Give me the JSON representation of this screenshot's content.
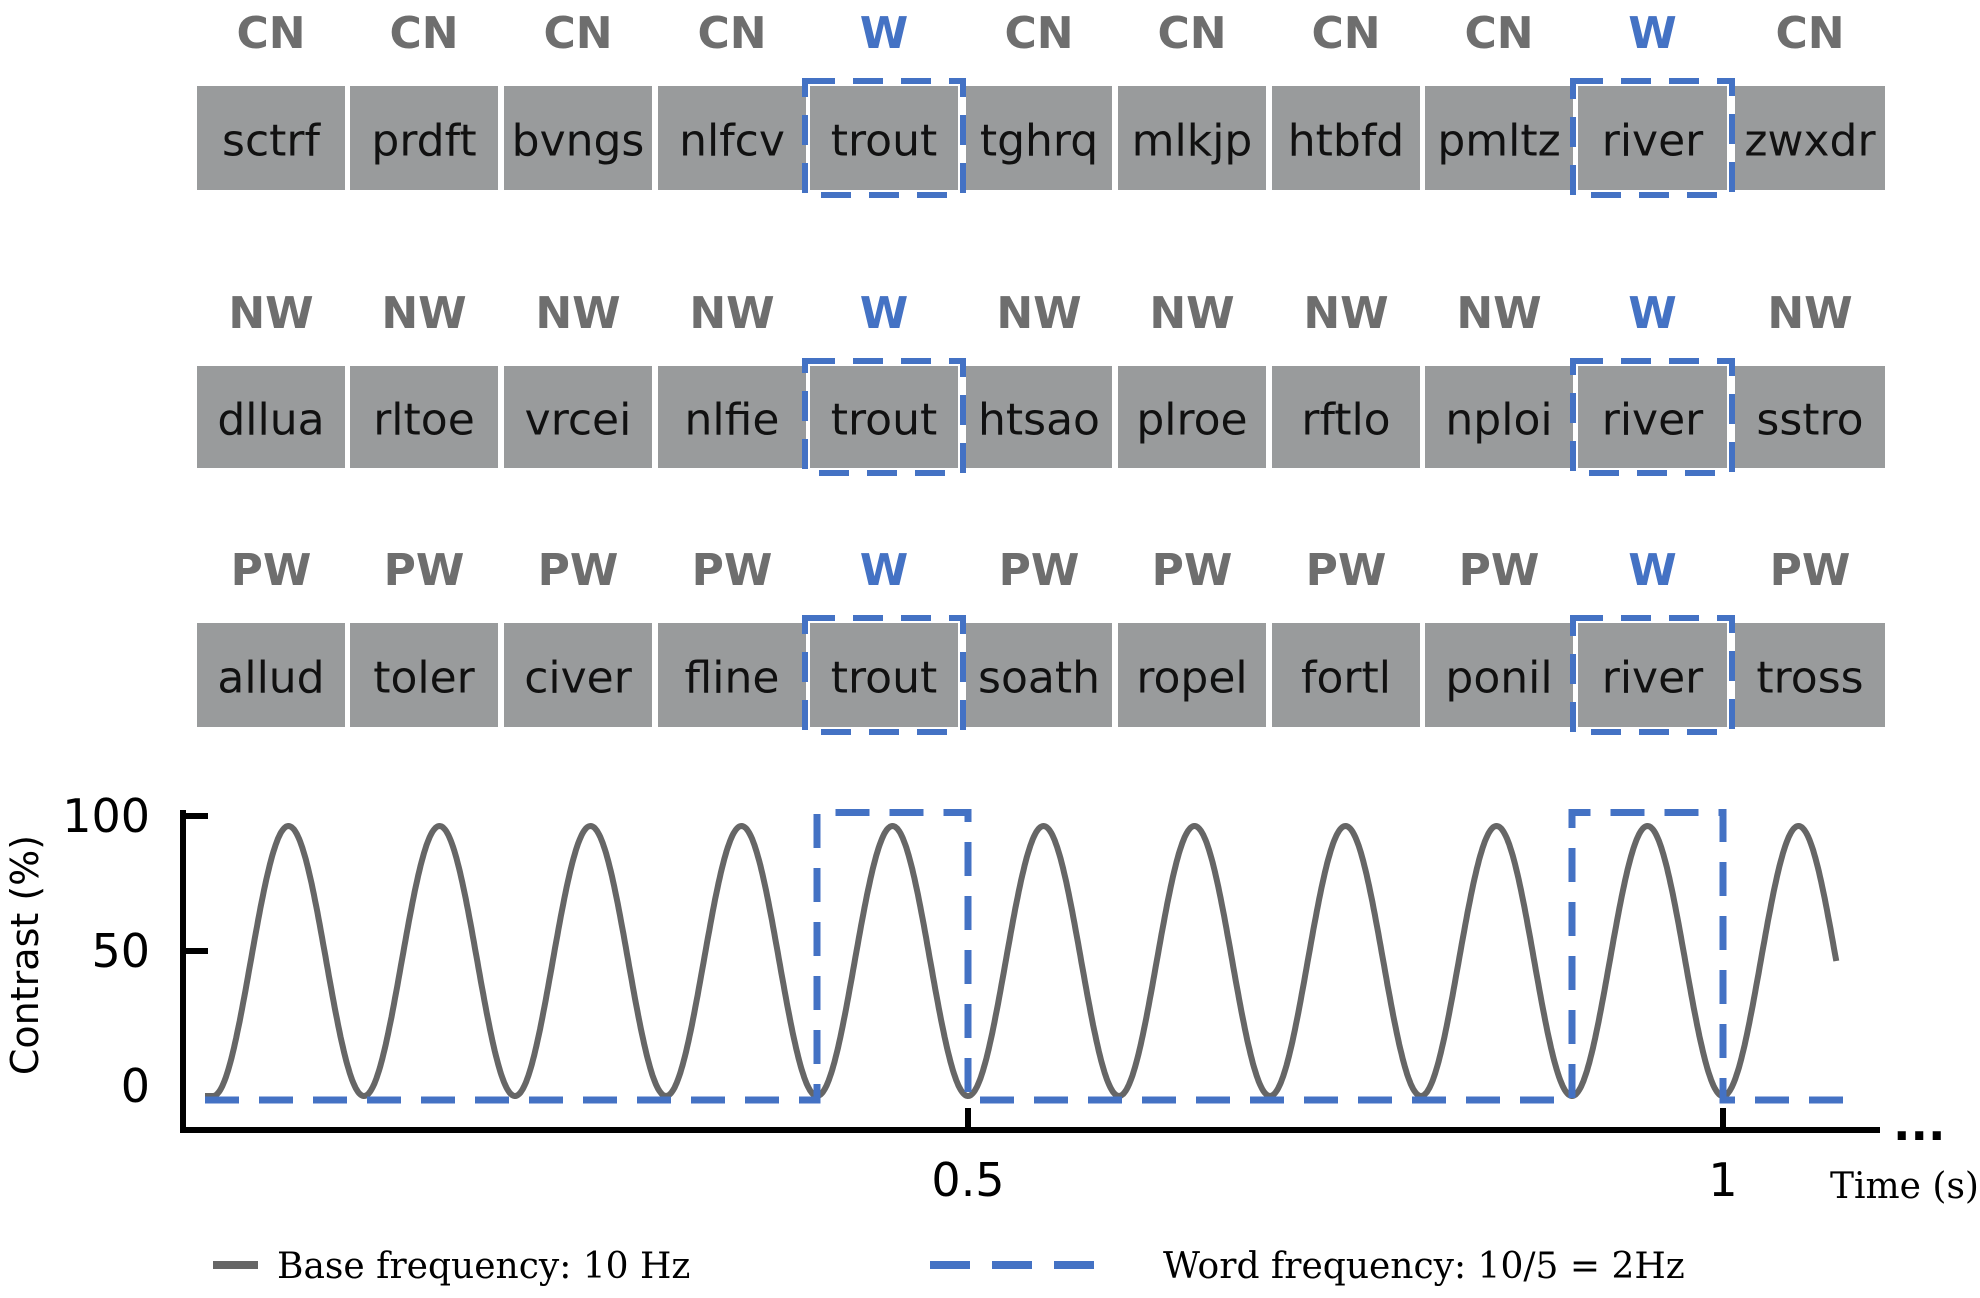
{
  "rows": [
    {
      "conditions": [
        "CN",
        "CN",
        "CN",
        "CN",
        "W",
        "CN",
        "CN",
        "CN",
        "CN",
        "W",
        "CN"
      ],
      "strings": [
        "sctrf",
        "prdft",
        "bvngs",
        "nlfcv",
        "trout",
        "tghrq",
        "mlkjp",
        "htbfd",
        "pmltz",
        "river",
        "zwxdr"
      ]
    },
    {
      "conditions": [
        "NW",
        "NW",
        "NW",
        "NW",
        "W",
        "NW",
        "NW",
        "NW",
        "NW",
        "W",
        "NW"
      ],
      "strings": [
        "dllua",
        "rltoe",
        "vrcei",
        "nlfie",
        "trout",
        "htsao",
        "plroe",
        "rftlo",
        "nploi",
        "river",
        "sstro"
      ]
    },
    {
      "conditions": [
        "PW",
        "PW",
        "PW",
        "PW",
        "W",
        "PW",
        "PW",
        "PW",
        "PW",
        "W",
        "PW"
      ],
      "strings": [
        "allud",
        "toler",
        "civer",
        "fline",
        "trout",
        "soath",
        "ropel",
        "fortl",
        "ponil",
        "river",
        "tross"
      ]
    }
  ],
  "word_positions": [
    4,
    9
  ],
  "colors": {
    "base": "#666666",
    "word": "#4472c4",
    "box": "#999b9c",
    "label": "#6e6e6e"
  },
  "plot": {
    "ylabel": "Contrast (%)",
    "yticks": [
      "100",
      "50",
      "0"
    ],
    "xticks": [
      "0.5",
      "1"
    ],
    "xlabel": "Time (s)",
    "ellipsis": "...",
    "base_frequency_hz": 10,
    "word_frequency_hz": 2
  },
  "legend": {
    "base": "Base frequency: 10 Hz",
    "word": "Word frequency: 10/5 = 2Hz"
  }
}
